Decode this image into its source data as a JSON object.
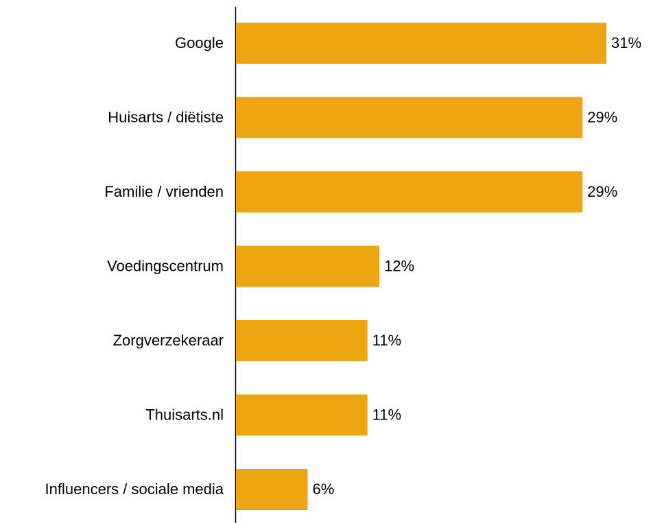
{
  "chart_data": {
    "type": "bar",
    "orientation": "horizontal",
    "categories": [
      "Google",
      "Huisarts / diëtiste",
      "Familie / vrienden",
      "Voedingscentrum",
      "Zorgverzekeraar",
      "Thuisarts.nl",
      "Influencers / sociale media"
    ],
    "values": [
      31,
      29,
      29,
      12,
      11,
      11,
      6
    ],
    "value_labels": [
      "31%",
      "29%",
      "29%",
      "12%",
      "11%",
      "11%",
      "6%"
    ],
    "color": "#eda512"
  }
}
